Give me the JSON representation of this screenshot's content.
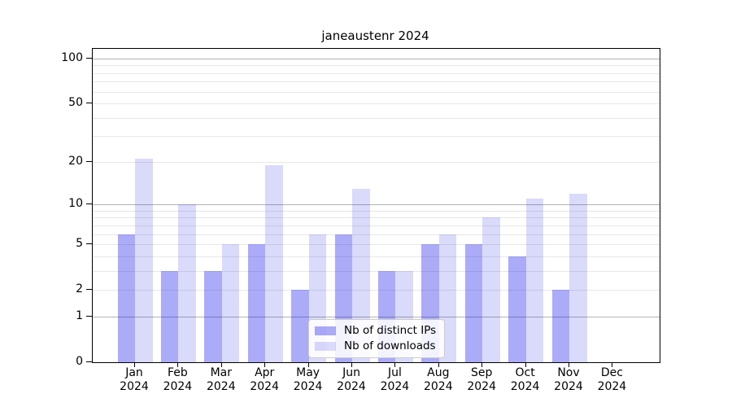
{
  "title": "janeaustenr 2024",
  "chart_data": {
    "type": "bar",
    "title": "janeaustenr 2024",
    "categories": [
      "Jan",
      "Feb",
      "Mar",
      "Apr",
      "May",
      "Jun",
      "Jul",
      "Aug",
      "Sep",
      "Oct",
      "Nov",
      "Dec"
    ],
    "year_label": "2024",
    "series": [
      {
        "name": "Nb of distinct IPs",
        "color": "rgba(0,0,230,0.33)",
        "values": [
          6,
          3,
          3,
          5,
          2,
          6,
          3,
          5,
          5,
          4,
          2,
          0
        ]
      },
      {
        "name": "Nb of downloads",
        "color": "rgba(0,0,230,0.145)",
        "values": [
          21,
          10,
          5,
          19,
          6,
          13,
          3,
          6,
          8,
          11,
          12,
          0
        ]
      }
    ],
    "y_scale": "log1p",
    "ylim": [
      0,
      116
    ],
    "y_major_ticks": [
      0,
      1,
      2,
      5,
      10,
      20,
      50,
      100
    ],
    "y_minor_gridlines": [
      3,
      4,
      6,
      7,
      8,
      9,
      30,
      40,
      60,
      70,
      80,
      90
    ],
    "y_decade_gridlines": [
      1,
      10,
      100
    ],
    "grid": true,
    "legend_position": "lower center",
    "colors": {
      "bar_distinct_ips": "rgba(0,0,230,0.33)",
      "bar_downloads": "rgba(0,0,230,0.145)",
      "gridline_minor": "#e7e7e7",
      "gridline_decade": "#b3b3b3",
      "axis": "#000000",
      "legend_border": "#cccccc"
    }
  }
}
